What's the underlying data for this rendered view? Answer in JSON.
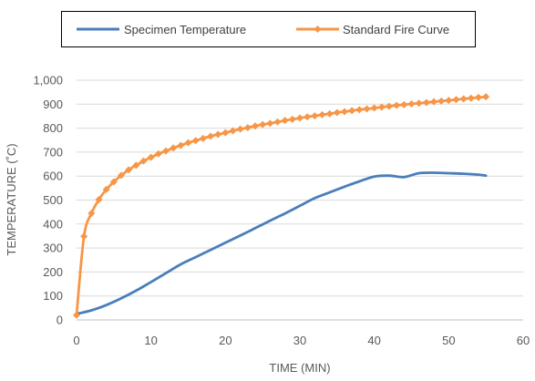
{
  "chart_data": {
    "type": "line",
    "title": "",
    "xlabel": "TIME (MIN)",
    "ylabel": "TEMPERATURE (˚C)",
    "xlim": [
      0,
      60
    ],
    "ylim": [
      0,
      1000
    ],
    "x_ticks": [
      0,
      10,
      20,
      30,
      40,
      50,
      60
    ],
    "y_ticks": [
      0,
      100,
      200,
      300,
      400,
      500,
      600,
      700,
      800,
      900,
      1000
    ],
    "x_tick_labels": [
      "0",
      "10",
      "20",
      "30",
      "40",
      "50",
      "60"
    ],
    "y_tick_labels": [
      "0",
      "100",
      "200",
      "300",
      "400",
      "500",
      "600",
      "700",
      "800",
      "900",
      "1,000"
    ],
    "grid": "horizontal",
    "legend_position": "top",
    "series": [
      {
        "name": "Specimen Temperature",
        "color": "#4a7ebb",
        "marker": "none",
        "x": [
          0,
          2,
          4,
          6,
          8,
          10,
          12,
          14,
          16,
          18,
          20,
          22,
          24,
          26,
          28,
          30,
          32,
          34,
          36,
          38,
          40,
          42,
          44,
          46,
          48,
          50,
          52,
          54,
          55
        ],
        "y": [
          25,
          40,
          62,
          90,
          122,
          158,
          195,
          232,
          262,
          292,
          322,
          352,
          383,
          414,
          444,
          476,
          508,
          532,
          556,
          578,
          598,
          602,
          596,
          612,
          614,
          612,
          610,
          606,
          602
        ]
      },
      {
        "name": "Standard Fire Curve",
        "color": "#f79646",
        "marker": "diamond",
        "x": [
          0,
          1,
          2,
          3,
          4,
          5,
          6,
          7,
          8,
          9,
          10,
          11,
          12,
          13,
          14,
          15,
          16,
          17,
          18,
          19,
          20,
          21,
          22,
          23,
          24,
          25,
          26,
          27,
          28,
          29,
          30,
          31,
          32,
          33,
          34,
          35,
          36,
          37,
          38,
          39,
          40,
          41,
          42,
          43,
          44,
          45,
          46,
          47,
          48,
          49,
          50,
          51,
          52,
          53,
          54,
          55
        ],
        "y": [
          20,
          349,
          445,
          502,
          544,
          576,
          603,
          626,
          645,
          663,
          678,
          693,
          705,
          717,
          728,
          739,
          748,
          757,
          766,
          774,
          781,
          789,
          796,
          802,
          809,
          815,
          820,
          826,
          832,
          837,
          842,
          847,
          851,
          856,
          860,
          865,
          869,
          873,
          877,
          880,
          884,
          888,
          891,
          895,
          898,
          901,
          904,
          907,
          910,
          913,
          916,
          919,
          922,
          925,
          928,
          931
        ]
      }
    ]
  }
}
